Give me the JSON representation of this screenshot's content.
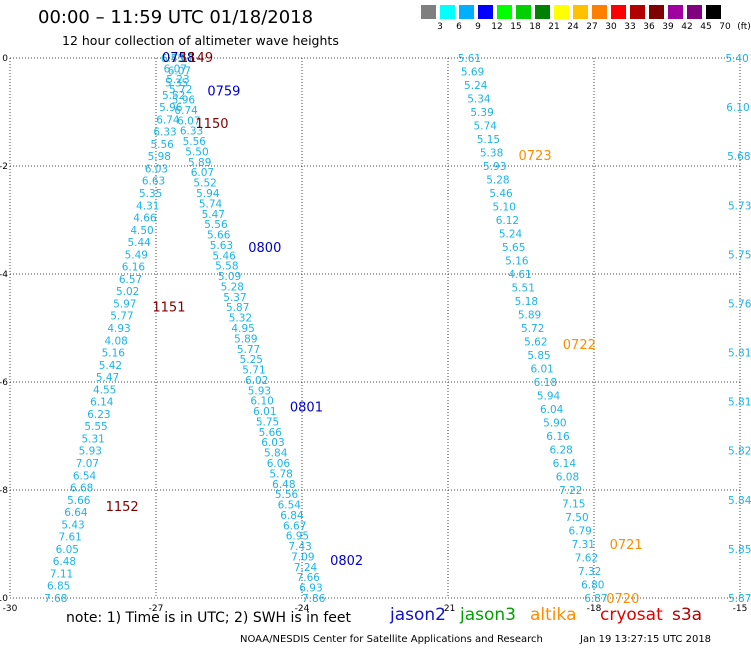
{
  "title": "00:00 – 11:59 UTC 01/18/2018",
  "subtitle": "12 hour collection of altimeter wave heights",
  "legend": {
    "colors": [
      "#7f7f7f",
      "#00ffff",
      "#00b0ff",
      "#0000ff",
      "#00ff00",
      "#00d000",
      "#008000",
      "#ffff00",
      "#ffc000",
      "#ff8000",
      "#ff0000",
      "#b00000",
      "#800000",
      "#a000a0",
      "#800080",
      "#000000"
    ],
    "labels": [
      "3",
      "6",
      "9",
      "12",
      "15",
      "18",
      "21",
      "24",
      "27",
      "30",
      "33",
      "36",
      "39",
      "42",
      "45",
      "70",
      "(ft)"
    ]
  },
  "chart_data": {
    "type": "scatter",
    "xlim": [
      -30,
      -15
    ],
    "ylim": [
      -10,
      0
    ],
    "x_ticks": [
      "-30",
      "-27",
      "-24",
      "-21",
      "-18",
      "-15"
    ],
    "y_ticks": [
      "0",
      "-2",
      "-4",
      "-6",
      "-8",
      "-10"
    ],
    "grid": true,
    "tracks": [
      {
        "satellite": "jason2",
        "color": "#1ab4e8",
        "lon_start": -26.9,
        "lon_end": -24.0,
        "values": [
          "6.45",
          "6.07",
          "5.23",
          "5.72",
          "5.96",
          "6.74",
          "6.07",
          "6.33",
          "5.56",
          "5.50",
          "5.89",
          "6.07",
          "5.52",
          "5.94",
          "5.74",
          "5.47",
          "5.56",
          "5.66",
          "5.63",
          "5.46",
          "5.58",
          "5.09",
          "5.28",
          "5.37",
          "5.87",
          "5.32",
          "4.95",
          "5.89",
          "5.77",
          "5.25",
          "5.71",
          "6.02",
          "5.93",
          "6.10",
          "6.01",
          "5.75",
          "5.66",
          "6.03",
          "5.84",
          "6.06",
          "5.78",
          "6.48",
          "5.56",
          "6.54",
          "6.84",
          "6.67",
          "6.95",
          "7.43",
          "7.09",
          "7.24",
          "7.66",
          "6.93",
          "7.86"
        ],
        "time_labels": [
          {
            "text": "0759",
            "lat": -0.6
          },
          {
            "text": "0800",
            "lat": -3.5
          },
          {
            "text": "0801",
            "lat": -6.45
          },
          {
            "text": "0802",
            "lat": -9.3
          }
        ]
      },
      {
        "satellite": "cryosat",
        "color": "#1ab4e8",
        "lon_start": -26.7,
        "lon_end": -29.3,
        "values": [
          "5.67",
          "6.07",
          "5.35",
          "5.52",
          "5.96",
          "6.74",
          "6.33",
          "5.56",
          "5.98",
          "6.03",
          "6.63",
          "5.35",
          "4.31",
          "4.66",
          "4.50",
          "5.44",
          "5.49",
          "6.16",
          "6.57",
          "5.02",
          "5.97",
          "5.77",
          "4.93",
          "4.08",
          "5.16",
          "5.42",
          "5.47",
          "4.55",
          "6.14",
          "6.23",
          "5.55",
          "5.31",
          "5.93",
          "7.07",
          "6.54",
          "6.68",
          "5.66",
          "6.64",
          "5.43",
          "7.61",
          "6.05",
          "6.48",
          "7.11",
          "6.85",
          "7.68"
        ],
        "time_labels": [
          {
            "text": "1150",
            "lat": -1.2
          },
          {
            "text": "1151",
            "lat": -4.6
          },
          {
            "text": "1152",
            "lat": -8.3
          }
        ]
      },
      {
        "satellite": "altika",
        "color": "#1ab4e8",
        "lon_start": -20.8,
        "lon_end": -18.2,
        "values": [
          "5.61",
          "5.69",
          "5.24",
          "5.34",
          "5.39",
          "5.74",
          "5.15",
          "5.38",
          "5.93",
          "5.28",
          "5.46",
          "5.10",
          "6.12",
          "5.24",
          "5.65",
          "5.16",
          "4.61",
          "5.51",
          "5.18",
          "5.89",
          "5.72",
          "5.62",
          "5.85",
          "6.01",
          "6.18",
          "5.94",
          "6.04",
          "5.90",
          "6.16",
          "6.28",
          "6.14",
          "6.08",
          "7.22",
          "7.15",
          "7.50",
          "6.79",
          "7.31",
          "7.62",
          "7.32",
          "6.80",
          "6.87"
        ],
        "time_labels": [
          {
            "text": "0723",
            "lat": -1.8
          },
          {
            "text": "0722",
            "lat": -5.3
          },
          {
            "text": "0721",
            "lat": -9.0
          },
          {
            "text": "0720",
            "lat": -10.0
          }
        ]
      },
      {
        "satellite": "jason3",
        "color": "#1ab4e8",
        "lon_start": -15.3,
        "lon_end": -15.1,
        "values": [
          "5.40",
          "6.10",
          "5.68",
          "5.73",
          "5.75",
          "5.76",
          "5.81",
          "5.81",
          "5.82",
          "5.84",
          "5.85",
          "5.87"
        ],
        "time_labels": []
      }
    ],
    "top_labels": [
      {
        "text": "0758",
        "color": "#000080"
      },
      {
        "text": "1149",
        "color": "#800000"
      }
    ]
  },
  "note": "note:  1) Time is in UTC;  2) SWH is in feet",
  "satellites": [
    {
      "name": "jason2",
      "color": "#1010d0"
    },
    {
      "name": "jason3",
      "color": "#00a000"
    },
    {
      "name": "altika",
      "color": "#ff8c00"
    },
    {
      "name": "cryosat",
      "color": "#e00000"
    },
    {
      "name": "s3a",
      "color": "#b00000"
    }
  ],
  "credit": "NOAA/NESDIS Center for Satellite Applications and Research",
  "timestamp": "Jan 19 13:27:15 UTC 2018"
}
